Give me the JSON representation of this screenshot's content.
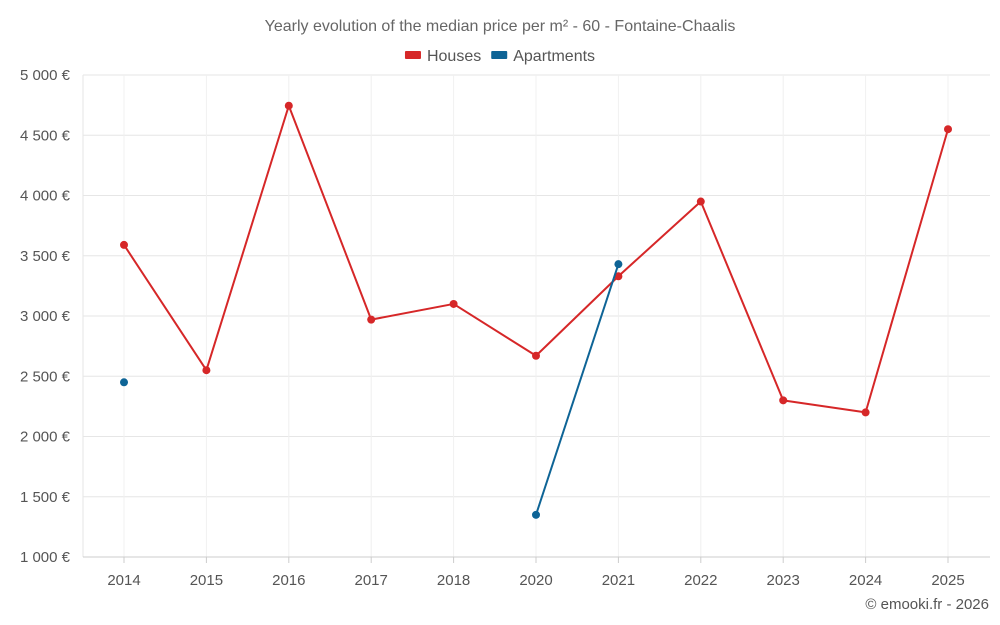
{
  "chart_data": {
    "type": "line",
    "title": "Yearly evolution of the median price per m² - 60 - Fontaine-Chaalis",
    "xlabel": "",
    "ylabel": "",
    "categories": [
      "2014",
      "2015",
      "2016",
      "2017",
      "2018",
      "2020",
      "2021",
      "2022",
      "2023",
      "2024",
      "2025"
    ],
    "ylim": [
      1000,
      5000
    ],
    "y_ticks": [
      1000,
      1500,
      2000,
      2500,
      3000,
      3500,
      4000,
      4500,
      5000
    ],
    "y_tick_labels": [
      "1 000 €",
      "1 500 €",
      "2 000 €",
      "2 500 €",
      "3 000 €",
      "3 500 €",
      "4 000 €",
      "4 500 €",
      "5 000 €"
    ],
    "grid": true,
    "legend_position": "top-center",
    "series": [
      {
        "name": "Houses",
        "color": "#d62728",
        "values": [
          3590,
          2550,
          4745,
          2970,
          3100,
          2670,
          3330,
          3950,
          2300,
          2200,
          4550
        ]
      },
      {
        "name": "Apartments",
        "color": "#0e6496",
        "values": [
          2450,
          null,
          null,
          null,
          null,
          1350,
          3430,
          null,
          null,
          null,
          null
        ]
      }
    ]
  },
  "footer": {
    "credit": "© emooki.fr - 2026"
  }
}
